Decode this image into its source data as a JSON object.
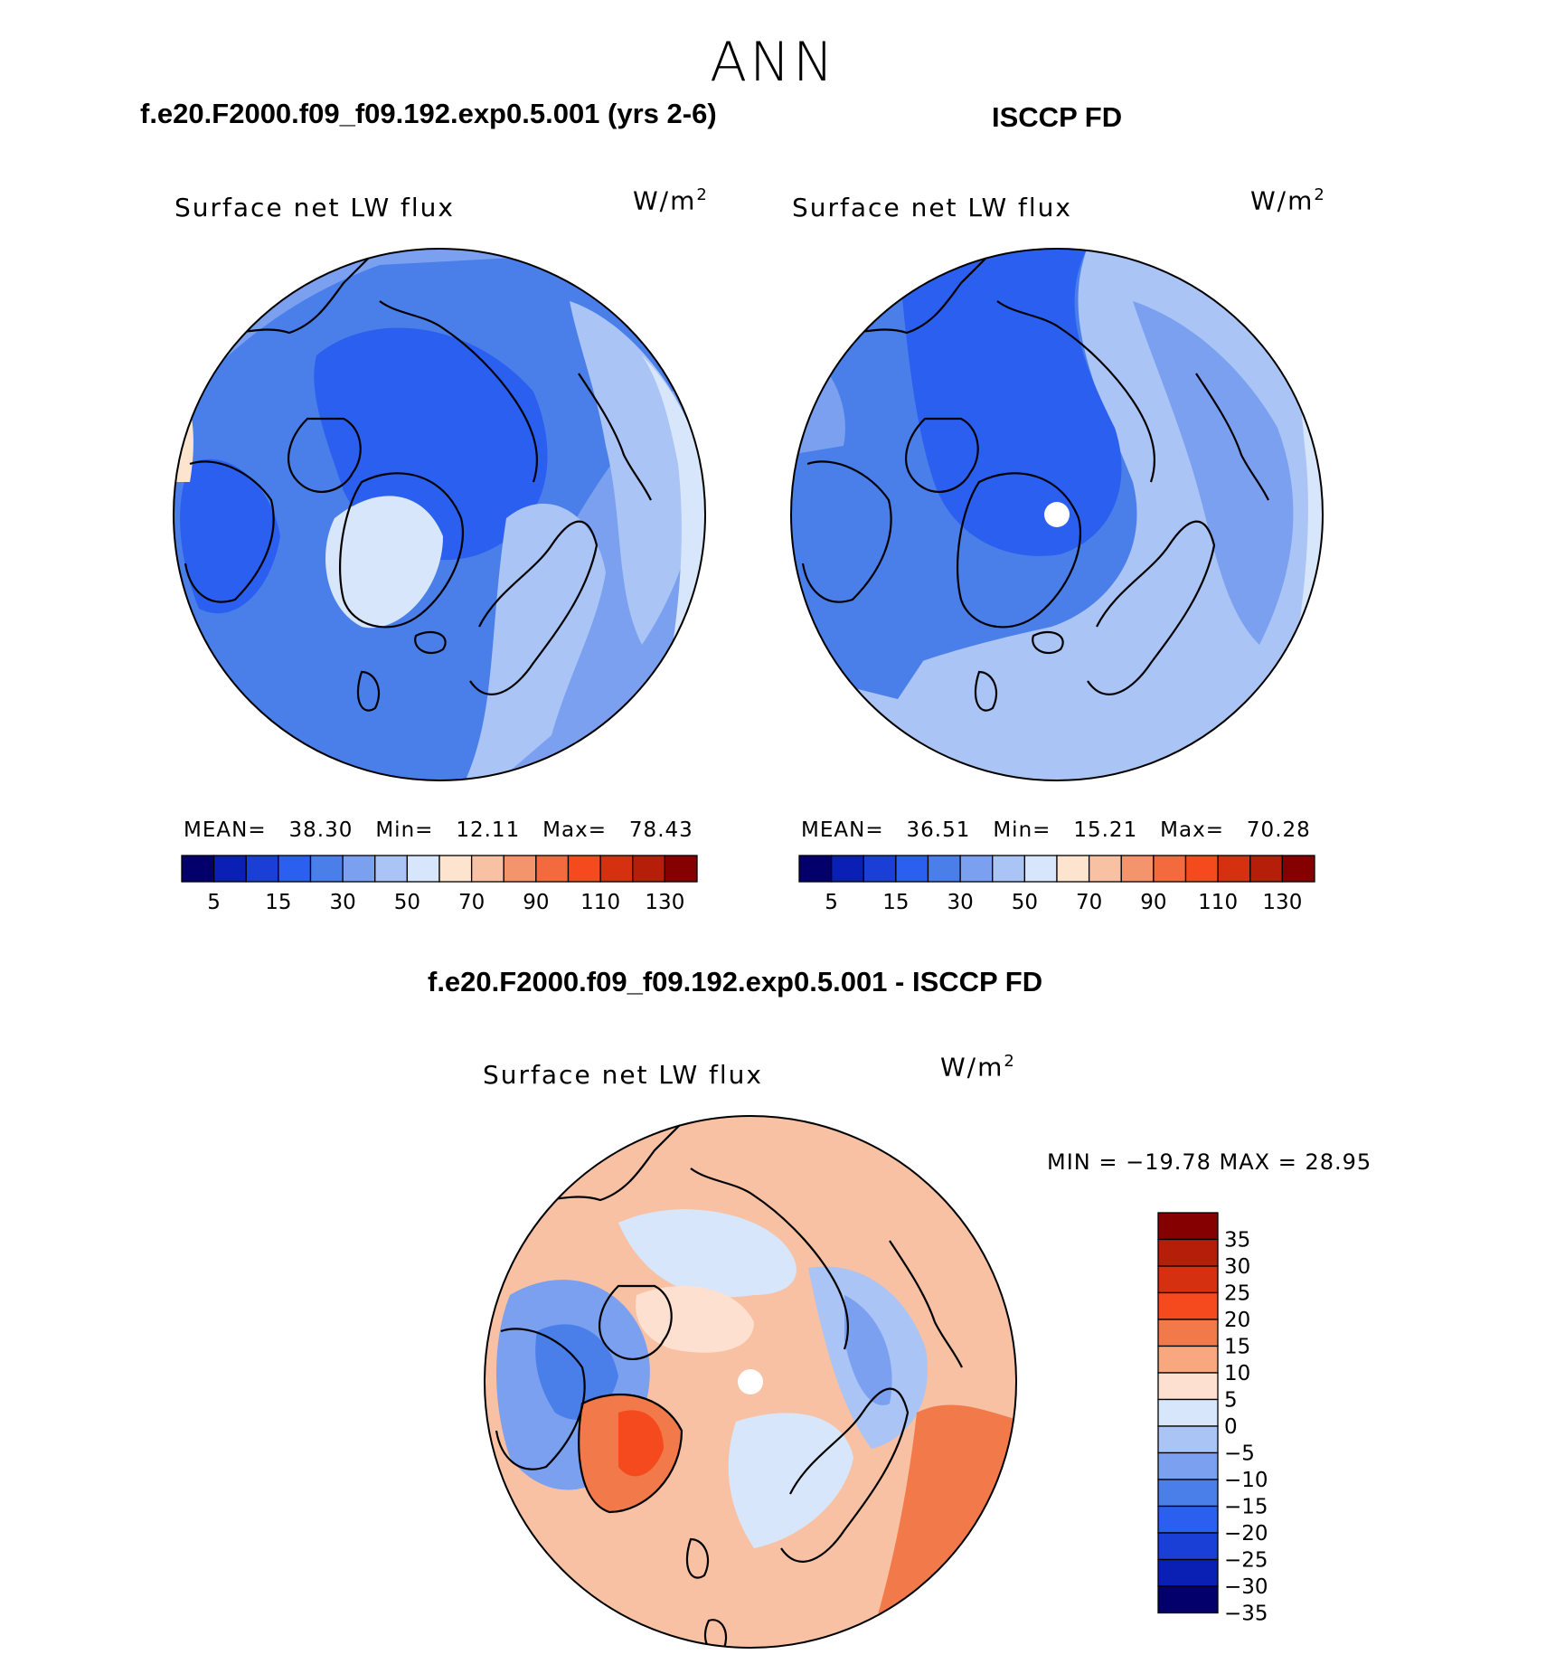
{
  "season": "ANN",
  "panels": [
    {
      "title": "f.e20.F2000.f09_f09.192.exp0.5.001 (yrs 2-6)",
      "variable": "Surface net LW flux",
      "units_base": "W/m",
      "units_exp": "2",
      "mean_label": "MEAN=",
      "mean": "38.30",
      "min_label": "Min=",
      "min": "12.11",
      "max_label": "Max=",
      "max": "78.43"
    },
    {
      "title": "ISCCP FD",
      "variable": "Surface net LW flux",
      "units_base": "W/m",
      "units_exp": "2",
      "mean_label": "MEAN=",
      "mean": "36.51",
      "min_label": "Min=",
      "min": "15.21",
      "max_label": "Max=",
      "max": "70.28"
    }
  ],
  "diff_panel": {
    "title": "f.e20.F2000.f09_f09.192.exp0.5.001 - ISCCP FD",
    "variable": "Surface net LW flux",
    "units_base": "W/m",
    "units_exp": "2",
    "minmax_text": "MIN = −19.78 MAX =   28.95"
  },
  "chart_data": [
    {
      "type": "heatmap",
      "projection": "north-polar-stereographic",
      "title": "f.e20.F2000.f09_f09.192.exp0.5.001 (yrs 2-6)",
      "variable": "Surface net LW flux",
      "units": "W/m2",
      "mean": 38.3,
      "min": 12.11,
      "max": 78.43,
      "contour_levels": [
        5,
        10,
        15,
        20,
        30,
        40,
        50,
        60,
        70,
        80,
        90,
        100,
        110,
        120,
        130
      ],
      "colorbar_ticks": [
        "5",
        "15",
        "30",
        "50",
        "70",
        "90",
        "110",
        "130"
      ],
      "colors": [
        "#03006b",
        "#0a1fb4",
        "#1a3fd6",
        "#2b5ff0",
        "#4a7ee8",
        "#7aa0ef",
        "#a9c4f5",
        "#d7e6fa",
        "#fde4cf",
        "#f8c1a3",
        "#f4946c",
        "#f26a3e",
        "#f44a1e",
        "#d5300f",
        "#b51f0a",
        "#850000"
      ]
    },
    {
      "type": "heatmap",
      "projection": "north-polar-stereographic",
      "title": "ISCCP FD",
      "variable": "Surface net LW flux",
      "units": "W/m2",
      "mean": 36.51,
      "min": 15.21,
      "max": 70.28,
      "contour_levels": [
        5,
        10,
        15,
        20,
        30,
        40,
        50,
        60,
        70,
        80,
        90,
        100,
        110,
        120,
        130
      ],
      "colorbar_ticks": [
        "5",
        "15",
        "30",
        "50",
        "70",
        "90",
        "110",
        "130"
      ],
      "colors": [
        "#03006b",
        "#0a1fb4",
        "#1a3fd6",
        "#2b5ff0",
        "#4a7ee8",
        "#7aa0ef",
        "#a9c4f5",
        "#d7e6fa",
        "#fde4cf",
        "#f8c1a3",
        "#f4946c",
        "#f26a3e",
        "#f44a1e",
        "#d5300f",
        "#b51f0a",
        "#850000"
      ]
    },
    {
      "type": "heatmap",
      "projection": "north-polar-stereographic",
      "title": "f.e20.F2000.f09_f09.192.exp0.5.001 - ISCCP FD",
      "variable": "Surface net LW flux",
      "units": "W/m2",
      "min": -19.78,
      "max": 28.95,
      "colorbar_ticks": [
        "35",
        "30",
        "25",
        "20",
        "15",
        "10",
        "5",
        "0",
        "−5",
        "−10",
        "−15",
        "−20",
        "−25",
        "−30",
        "−35"
      ],
      "colors": [
        "#850000",
        "#b51f0a",
        "#d5300f",
        "#f44a1e",
        "#f27a4a",
        "#f8a77f",
        "#fde0cf",
        "#d7e6fa",
        "#a9c4f5",
        "#7aa0ef",
        "#4a7ee8",
        "#2b5ff0",
        "#1a3fd6",
        "#0a1fb4",
        "#03006b"
      ]
    }
  ]
}
